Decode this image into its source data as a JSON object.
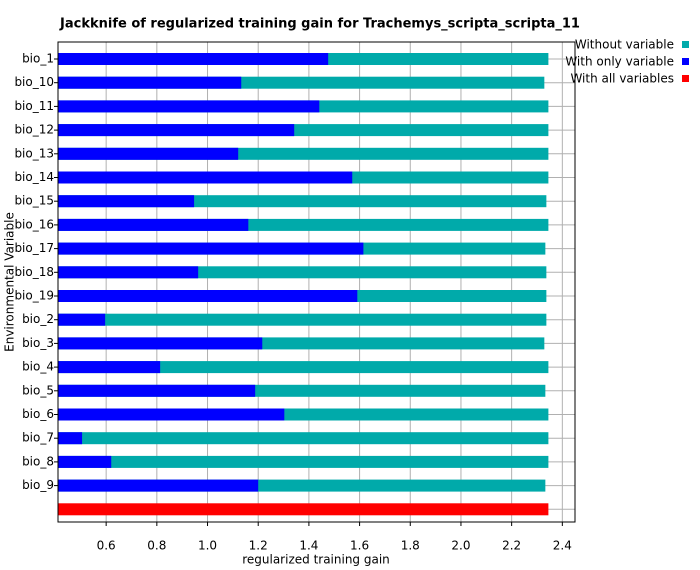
{
  "chart_data": {
    "type": "bar",
    "orientation": "horizontal",
    "title": "Jackknife of regularized training gain for Trachemys_scripta_scripta_11",
    "x_label": "regularized training gain",
    "y_label": "Environmental Variable",
    "categories": [
      "bio_1",
      "bio_10",
      "bio_11",
      "bio_12",
      "bio_13",
      "bio_14",
      "bio_15",
      "bio_16",
      "bio_17",
      "bio_18",
      "bio_19",
      "bio_2",
      "bio_3",
      "bio_4",
      "bio_5",
      "bio_6",
      "bio_7",
      "bio_8",
      "bio_9",
      null
    ],
    "series": [
      {
        "name": "Without variable",
        "color": "#00aaaa",
        "values": [
          2.345,
          2.329,
          2.345,
          2.345,
          2.345,
          2.345,
          2.337,
          2.345,
          2.333,
          2.337,
          2.337,
          2.337,
          2.329,
          2.345,
          2.333,
          2.345,
          2.345,
          2.345,
          2.333,
          null
        ]
      },
      {
        "name": "With only variable",
        "color": "#0000ff",
        "values": [
          1.476,
          1.133,
          1.441,
          1.342,
          1.121,
          1.571,
          0.947,
          1.161,
          1.615,
          0.963,
          1.591,
          0.596,
          1.216,
          0.813,
          1.188,
          1.303,
          0.505,
          0.62,
          1.2,
          null
        ]
      },
      {
        "name": "With all variables",
        "color": "#ff0000",
        "values": [
          null,
          null,
          null,
          null,
          null,
          null,
          null,
          null,
          null,
          null,
          null,
          null,
          null,
          null,
          null,
          null,
          null,
          null,
          null,
          2.345
        ]
      }
    ],
    "xlim": [
      0.41,
      2.45
    ],
    "xticks": [
      0.6,
      0.8,
      {
        "value": 1,
        "label": "1.0"
      },
      1.2,
      1.4,
      1.6,
      1.8,
      {
        "value": 2,
        "label": "2.0"
      },
      2.2,
      2.4
    ],
    "grid": true,
    "legend": "top-right"
  }
}
